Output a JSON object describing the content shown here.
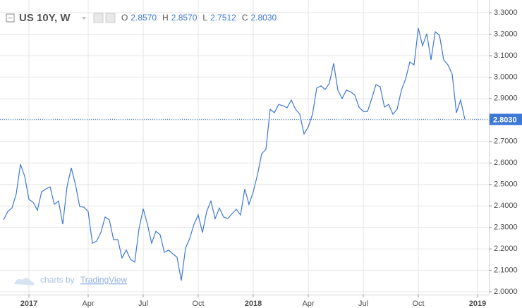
{
  "header": {
    "symbol": "US 10Y, W",
    "ohlc": [
      {
        "key": "O",
        "value": "2.8570"
      },
      {
        "key": "H",
        "value": "2.8570"
      },
      {
        "key": "L",
        "value": "2.7512"
      },
      {
        "key": "C",
        "value": "2.8030"
      }
    ]
  },
  "watermark": {
    "prefix": "charts by",
    "brand": "TradingView"
  },
  "chart_data": {
    "type": "line",
    "color": "#3d78d6",
    "grid": true,
    "categories": [
      null,
      null,
      null,
      null,
      null,
      null,
      "2017",
      null,
      null,
      null,
      null,
      null,
      null,
      null,
      null,
      null,
      null,
      null,
      null,
      null,
      "Apr",
      null,
      null,
      null,
      null,
      null,
      null,
      null,
      null,
      null,
      null,
      null,
      null,
      "Jul",
      null,
      null,
      null,
      null,
      null,
      null,
      null,
      null,
      null,
      null,
      null,
      null,
      "Oct",
      null,
      null,
      null,
      null,
      null,
      null,
      null,
      null,
      null,
      null,
      null,
      null,
      "2018",
      null,
      null,
      null,
      null,
      null,
      null,
      null,
      null,
      null,
      null,
      null,
      null,
      "Apr",
      null,
      null,
      null,
      null,
      null,
      null,
      null,
      null,
      null,
      null,
      null,
      null,
      "Jul",
      null,
      null,
      null,
      null,
      null,
      null,
      null,
      null,
      null,
      null,
      null,
      null,
      "Oct",
      null,
      null,
      null,
      null,
      null,
      null,
      null,
      null,
      null,
      null,
      null,
      null,
      null,
      "2019"
    ],
    "values": [
      2.335,
      2.374,
      2.39,
      2.456,
      2.594,
      2.538,
      2.43,
      2.417,
      2.38,
      2.466,
      2.479,
      2.489,
      2.407,
      2.423,
      2.315,
      2.489,
      2.577,
      2.499,
      2.397,
      2.394,
      2.374,
      2.226,
      2.236,
      2.276,
      2.348,
      2.335,
      2.243,
      2.243,
      2.158,
      2.194,
      2.151,
      2.138,
      2.292,
      2.387,
      2.315,
      2.226,
      2.282,
      2.266,
      2.184,
      2.194,
      2.177,
      2.161,
      2.052,
      2.203,
      2.249,
      2.315,
      2.358,
      2.276,
      2.374,
      2.423,
      2.341,
      2.39,
      2.348,
      2.341,
      2.364,
      2.384,
      2.358,
      2.479,
      2.407,
      2.466,
      2.545,
      2.643,
      2.663,
      2.85,
      2.834,
      2.873,
      2.866,
      2.857,
      2.893,
      2.85,
      2.827,
      2.735,
      2.768,
      2.827,
      2.949,
      2.959,
      2.942,
      2.972,
      3.064,
      2.939,
      2.9,
      2.939,
      2.932,
      2.916,
      2.86,
      2.84,
      2.84,
      2.9,
      2.965,
      2.955,
      2.86,
      2.873,
      2.827,
      2.85,
      2.939,
      2.991,
      3.07,
      3.057,
      3.228,
      3.146,
      3.202,
      3.08,
      3.211,
      3.195,
      3.08,
      3.057,
      3.014,
      2.834,
      2.893,
      2.803,
      null,
      null,
      null
    ],
    "ylim": [
      1.987,
      3.359
    ],
    "yticks": [
      {
        "value": 2.0,
        "label": "2.0000"
      },
      {
        "value": 2.1,
        "label": "2.1000"
      },
      {
        "value": 2.2,
        "label": "2.2000"
      },
      {
        "value": 2.3,
        "label": "2.3000"
      },
      {
        "value": 2.4,
        "label": "2.4000"
      },
      {
        "value": 2.5,
        "label": "2.5000"
      },
      {
        "value": 2.6,
        "label": "2.6000"
      },
      {
        "value": 2.7,
        "label": "2.7000"
      },
      {
        "value": 2.8,
        "label": "2.8000"
      },
      {
        "value": 2.9,
        "label": "2.9000"
      },
      {
        "value": 3.0,
        "label": "3.0000"
      },
      {
        "value": 3.1,
        "label": "3.1000"
      },
      {
        "value": 3.2,
        "label": "3.2000"
      },
      {
        "value": 3.3,
        "label": "3.3000"
      }
    ],
    "last_value": {
      "value": 2.803,
      "label": "2.8030"
    }
  }
}
